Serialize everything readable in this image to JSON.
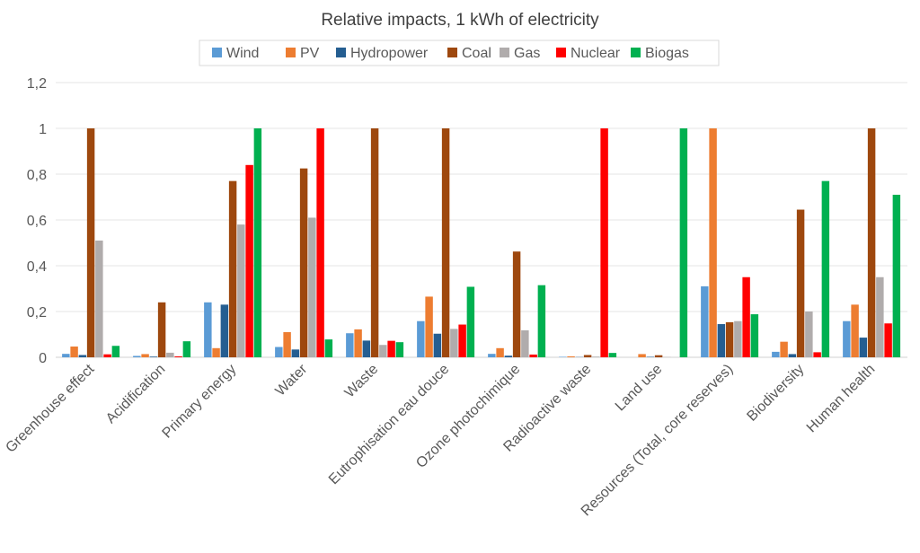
{
  "chart_data": {
    "type": "bar",
    "title": "Relative impacts, 1 kWh of electricity",
    "xlabel": "",
    "ylabel": "",
    "ylim": [
      0,
      1.2
    ],
    "yticks": [
      "0",
      "0,2",
      "0,4",
      "0,6",
      "0,8",
      "1",
      "1,2"
    ],
    "grid": true,
    "legend_position": "top",
    "categories": [
      "Greenhouse effect",
      "Acidification",
      "Primary energy",
      "Water",
      "Waste",
      "Eutrophisation eau douce",
      "Ozone photochimique",
      "Radioactive waste",
      "Land use",
      "Resources (Total, core reserves)",
      "Biodiversity",
      "Human health"
    ],
    "series": [
      {
        "name": "Wind",
        "color": "#5B9BD5",
        "values": [
          0.015,
          0.006,
          0.24,
          0.045,
          0.105,
          0.158,
          0.015,
          0.002,
          0,
          0.31,
          0.024,
          0.158
        ]
      },
      {
        "name": "PV",
        "color": "#ED7D31",
        "values": [
          0.047,
          0.014,
          0.04,
          0.11,
          0.122,
          0.265,
          0.04,
          0.004,
          0.014,
          1,
          0.068,
          0.23
        ]
      },
      {
        "name": "Hydropower",
        "color": "#255E91",
        "values": [
          0.01,
          0.003,
          0.23,
          0.034,
          0.073,
          0.103,
          0.007,
          0.001,
          0.002,
          0.145,
          0.014,
          0.086
        ]
      },
      {
        "name": "Coal",
        "color": "#9E480E",
        "values": [
          1,
          0.24,
          0.77,
          0.825,
          1,
          1,
          0.462,
          0.01,
          0.009,
          0.153,
          0.645,
          1
        ]
      },
      {
        "name": "Gas",
        "color": "#B0ACAC",
        "values": [
          0.51,
          0.02,
          0.58,
          0.61,
          0.054,
          0.124,
          0.118,
          0.003,
          0.001,
          0.158,
          0.2,
          0.35
        ]
      },
      {
        "name": "Nuclear",
        "color": "#FF0000",
        "values": [
          0.013,
          0.004,
          0.84,
          1,
          0.072,
          0.143,
          0.012,
          1,
          0,
          0.35,
          0.022,
          0.148
        ]
      },
      {
        "name": "Biogas",
        "color": "#00B050",
        "values": [
          0.05,
          0.07,
          1,
          0.078,
          0.066,
          0.308,
          0.315,
          0.019,
          1,
          0.188,
          0.77,
          0.71
        ]
      }
    ]
  }
}
